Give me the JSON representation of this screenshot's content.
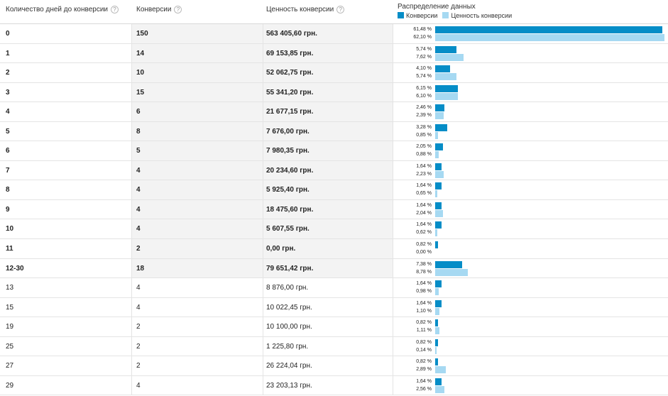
{
  "headers": {
    "days": "Количество дней до конверсии",
    "conversions": "Конверсии",
    "value": "Ценность конверсии",
    "distribution": "Распределение данных",
    "help_icon": "?",
    "legend_conversions": "Конверсии",
    "legend_value": "Ценность конверсии"
  },
  "colors": {
    "conversions": "#058dc7",
    "value": "#a6d9f2"
  },
  "rows": [
    {
      "days": "0",
      "conversions": "150",
      "value": "563 405,60 грн.",
      "conv_pct": "61,48 %",
      "value_pct": "62,10 %",
      "conv_share": 61.48,
      "value_share": 62.1,
      "bold": true
    },
    {
      "days": "1",
      "conversions": "14",
      "value": "69 153,85 грн.",
      "conv_pct": "5,74 %",
      "value_pct": "7,62 %",
      "conv_share": 5.74,
      "value_share": 7.62,
      "bold": true
    },
    {
      "days": "2",
      "conversions": "10",
      "value": "52 062,75 грн.",
      "conv_pct": "4,10 %",
      "value_pct": "5,74 %",
      "conv_share": 4.1,
      "value_share": 5.74,
      "bold": true
    },
    {
      "days": "3",
      "conversions": "15",
      "value": "55 341,20 грн.",
      "conv_pct": "6,15 %",
      "value_pct": "6,10 %",
      "conv_share": 6.15,
      "value_share": 6.1,
      "bold": true
    },
    {
      "days": "4",
      "conversions": "6",
      "value": "21 677,15 грн.",
      "conv_pct": "2,46 %",
      "value_pct": "2,39 %",
      "conv_share": 2.46,
      "value_share": 2.39,
      "bold": true
    },
    {
      "days": "5",
      "conversions": "8",
      "value": "7 676,00 грн.",
      "conv_pct": "3,28 %",
      "value_pct": "0,85 %",
      "conv_share": 3.28,
      "value_share": 0.85,
      "bold": true
    },
    {
      "days": "6",
      "conversions": "5",
      "value": "7 980,35 грн.",
      "conv_pct": "2,05 %",
      "value_pct": "0,88 %",
      "conv_share": 2.05,
      "value_share": 0.88,
      "bold": true
    },
    {
      "days": "7",
      "conversions": "4",
      "value": "20 234,60 грн.",
      "conv_pct": "1,64 %",
      "value_pct": "2,23 %",
      "conv_share": 1.64,
      "value_share": 2.23,
      "bold": true
    },
    {
      "days": "8",
      "conversions": "4",
      "value": "5 925,40 грн.",
      "conv_pct": "1,64 %",
      "value_pct": "0,65 %",
      "conv_share": 1.64,
      "value_share": 0.65,
      "bold": true
    },
    {
      "days": "9",
      "conversions": "4",
      "value": "18 475,60 грн.",
      "conv_pct": "1,64 %",
      "value_pct": "2,04 %",
      "conv_share": 1.64,
      "value_share": 2.04,
      "bold": true
    },
    {
      "days": "10",
      "conversions": "4",
      "value": "5 607,55 грн.",
      "conv_pct": "1,64 %",
      "value_pct": "0,62 %",
      "conv_share": 1.64,
      "value_share": 0.62,
      "bold": true
    },
    {
      "days": "11",
      "conversions": "2",
      "value": "0,00 грн.",
      "conv_pct": "0,82 %",
      "value_pct": "0,00 %",
      "conv_share": 0.82,
      "value_share": 0.0,
      "bold": true
    },
    {
      "days": "12-30",
      "conversions": "18",
      "value": "79 651,42 грн.",
      "conv_pct": "7,38 %",
      "value_pct": "8,78 %",
      "conv_share": 7.38,
      "value_share": 8.78,
      "bold": true
    },
    {
      "days": "13",
      "conversions": "4",
      "value": "8 876,00 грн.",
      "conv_pct": "1,64 %",
      "value_pct": "0,98 %",
      "conv_share": 1.64,
      "value_share": 0.98,
      "bold": false
    },
    {
      "days": "15",
      "conversions": "4",
      "value": "10 022,45 грн.",
      "conv_pct": "1,64 %",
      "value_pct": "1,10 %",
      "conv_share": 1.64,
      "value_share": 1.1,
      "bold": false
    },
    {
      "days": "19",
      "conversions": "2",
      "value": "10 100,00 грн.",
      "conv_pct": "0,82 %",
      "value_pct": "1,11 %",
      "conv_share": 0.82,
      "value_share": 1.11,
      "bold": false
    },
    {
      "days": "25",
      "conversions": "2",
      "value": "1 225,80 грн.",
      "conv_pct": "0,82 %",
      "value_pct": "0,14 %",
      "conv_share": 0.82,
      "value_share": 0.14,
      "bold": false
    },
    {
      "days": "27",
      "conversions": "2",
      "value": "26 224,04 грн.",
      "conv_pct": "0,82 %",
      "value_pct": "2,89 %",
      "conv_share": 0.82,
      "value_share": 2.89,
      "bold": false
    },
    {
      "days": "29",
      "conversions": "4",
      "value": "23 203,13 грн.",
      "conv_pct": "1,64 %",
      "value_pct": "2,56 %",
      "conv_share": 1.64,
      "value_share": 2.56,
      "bold": false
    }
  ]
}
